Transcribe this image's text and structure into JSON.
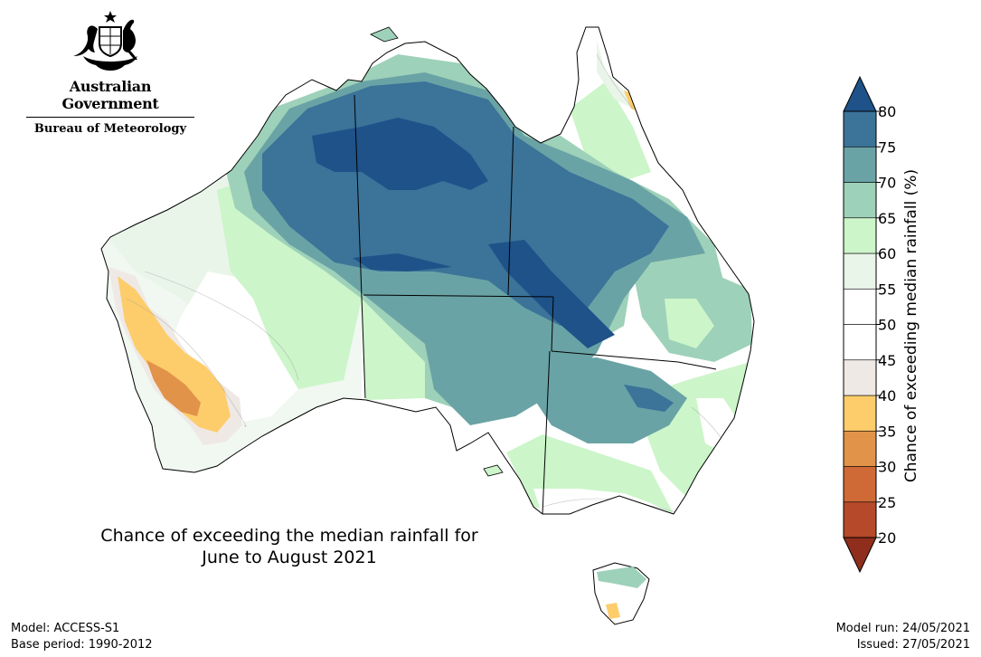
{
  "branding": {
    "government": "Australian Government",
    "bureau": "Bureau of Meteorology"
  },
  "map": {
    "title_line1": "Chance of exceeding the median rainfall for",
    "title_line2": "June to August 2021"
  },
  "footer": {
    "model": "Model: ACCESS-S1",
    "base_period": "Base period: 1990-2012",
    "model_run": "Model run: 24/05/2021",
    "issued": "Issued: 27/05/2021"
  },
  "colorbar": {
    "label": "Chance of exceeding median rainfall (%)",
    "ticks": [
      "20",
      "25",
      "30",
      "35",
      "40",
      "45",
      "50",
      "55",
      "60",
      "65",
      "70",
      "75",
      "80"
    ],
    "bins": [
      {
        "range": "20-25",
        "color": "#b5492a"
      },
      {
        "range": "25-30",
        "color": "#cf6a37"
      },
      {
        "range": "30-35",
        "color": "#e2934a"
      },
      {
        "range": "35-40",
        "color": "#fdcd6b"
      },
      {
        "range": "40-45",
        "color": "#efe9e6"
      },
      {
        "range": "45-50",
        "color": "#ffffff"
      },
      {
        "range": "50-55",
        "color": "#ffffff"
      },
      {
        "range": "55-60",
        "color": "#e9f5e9"
      },
      {
        "range": "60-65",
        "color": "#ccf5c9"
      },
      {
        "range": "65-70",
        "color": "#9ed1b9"
      },
      {
        "range": "70-75",
        "color": "#6aa3a5"
      },
      {
        "range": "75-80",
        "color": "#3b7399"
      }
    ],
    "over_color": "#1e5289",
    "under_color": "#8f2e1c"
  }
}
